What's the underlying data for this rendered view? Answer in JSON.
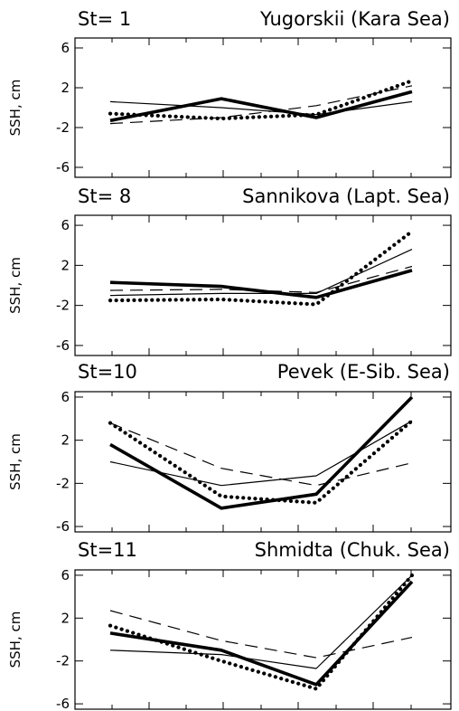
{
  "chart_data": [
    {
      "type": "line",
      "title_station": "St= 1",
      "title_name": "Yugorskii (Kara Sea)",
      "ylabel": "SSH, cm",
      "ylim": [
        -7,
        7
      ],
      "yticks": [
        6,
        2,
        -2,
        -6
      ],
      "x": [
        1,
        2,
        3,
        4
      ],
      "series": [
        {
          "style": "thick-solid",
          "values": [
            -1.3,
            0.9,
            -1.0,
            1.6
          ]
        },
        {
          "style": "thin-solid",
          "values": [
            0.6,
            0.0,
            -0.7,
            0.6
          ]
        },
        {
          "style": "dashed",
          "values": [
            -1.6,
            -1.0,
            0.2,
            2.2
          ]
        },
        {
          "style": "dotted",
          "values": [
            -0.6,
            -1.1,
            -0.7,
            2.7
          ]
        }
      ]
    },
    {
      "type": "line",
      "title_station": "St= 8",
      "title_name": "Sannikova (Lapt. Sea)",
      "ylabel": "SSH, cm",
      "ylim": [
        -7,
        7
      ],
      "yticks": [
        6,
        2,
        -2,
        -6
      ],
      "x": [
        1,
        2,
        3,
        4
      ],
      "series": [
        {
          "style": "thick-solid",
          "values": [
            0.3,
            -0.1,
            -1.2,
            1.5
          ]
        },
        {
          "style": "thin-solid",
          "values": [
            -1.0,
            -0.8,
            -0.8,
            3.6
          ]
        },
        {
          "style": "dashed",
          "values": [
            -0.5,
            -0.4,
            -0.7,
            1.9
          ]
        },
        {
          "style": "dotted",
          "values": [
            -1.5,
            -1.4,
            -1.9,
            5.4
          ]
        }
      ]
    },
    {
      "type": "line",
      "title_station": "St=10",
      "title_name": "Pevek (E-Sib. Sea)",
      "ylabel": "SSH, cm",
      "ylim": [
        -6.5,
        6.5
      ],
      "yticks": [
        6,
        2,
        -2,
        -6
      ],
      "x": [
        1,
        2,
        3,
        4
      ],
      "series": [
        {
          "style": "thick-solid",
          "values": [
            1.6,
            -4.3,
            -3.0,
            6.0
          ]
        },
        {
          "style": "thin-solid",
          "values": [
            0.0,
            -2.2,
            -1.3,
            3.8
          ]
        },
        {
          "style": "dashed",
          "values": [
            3.6,
            -0.6,
            -2.2,
            -0.1
          ]
        },
        {
          "style": "dotted",
          "values": [
            3.6,
            -3.2,
            -3.8,
            3.8
          ]
        }
      ]
    },
    {
      "type": "line",
      "title_station": "St=11",
      "title_name": "Shmidta (Chuk. Sea)",
      "ylabel": "SSH, cm",
      "ylim": [
        -6.5,
        6.5
      ],
      "yticks": [
        6,
        2,
        -2,
        -6
      ],
      "x": [
        1,
        2,
        3,
        4
      ],
      "series": [
        {
          "style": "thick-solid",
          "values": [
            0.6,
            -1.0,
            -4.2,
            5.4
          ]
        },
        {
          "style": "thin-solid",
          "values": [
            -1.0,
            -1.4,
            -2.7,
            6.0
          ]
        },
        {
          "style": "dashed",
          "values": [
            2.7,
            -0.1,
            -1.7,
            0.2
          ]
        },
        {
          "style": "dotted",
          "values": [
            1.3,
            -2.0,
            -4.6,
            6.0
          ]
        }
      ]
    }
  ]
}
